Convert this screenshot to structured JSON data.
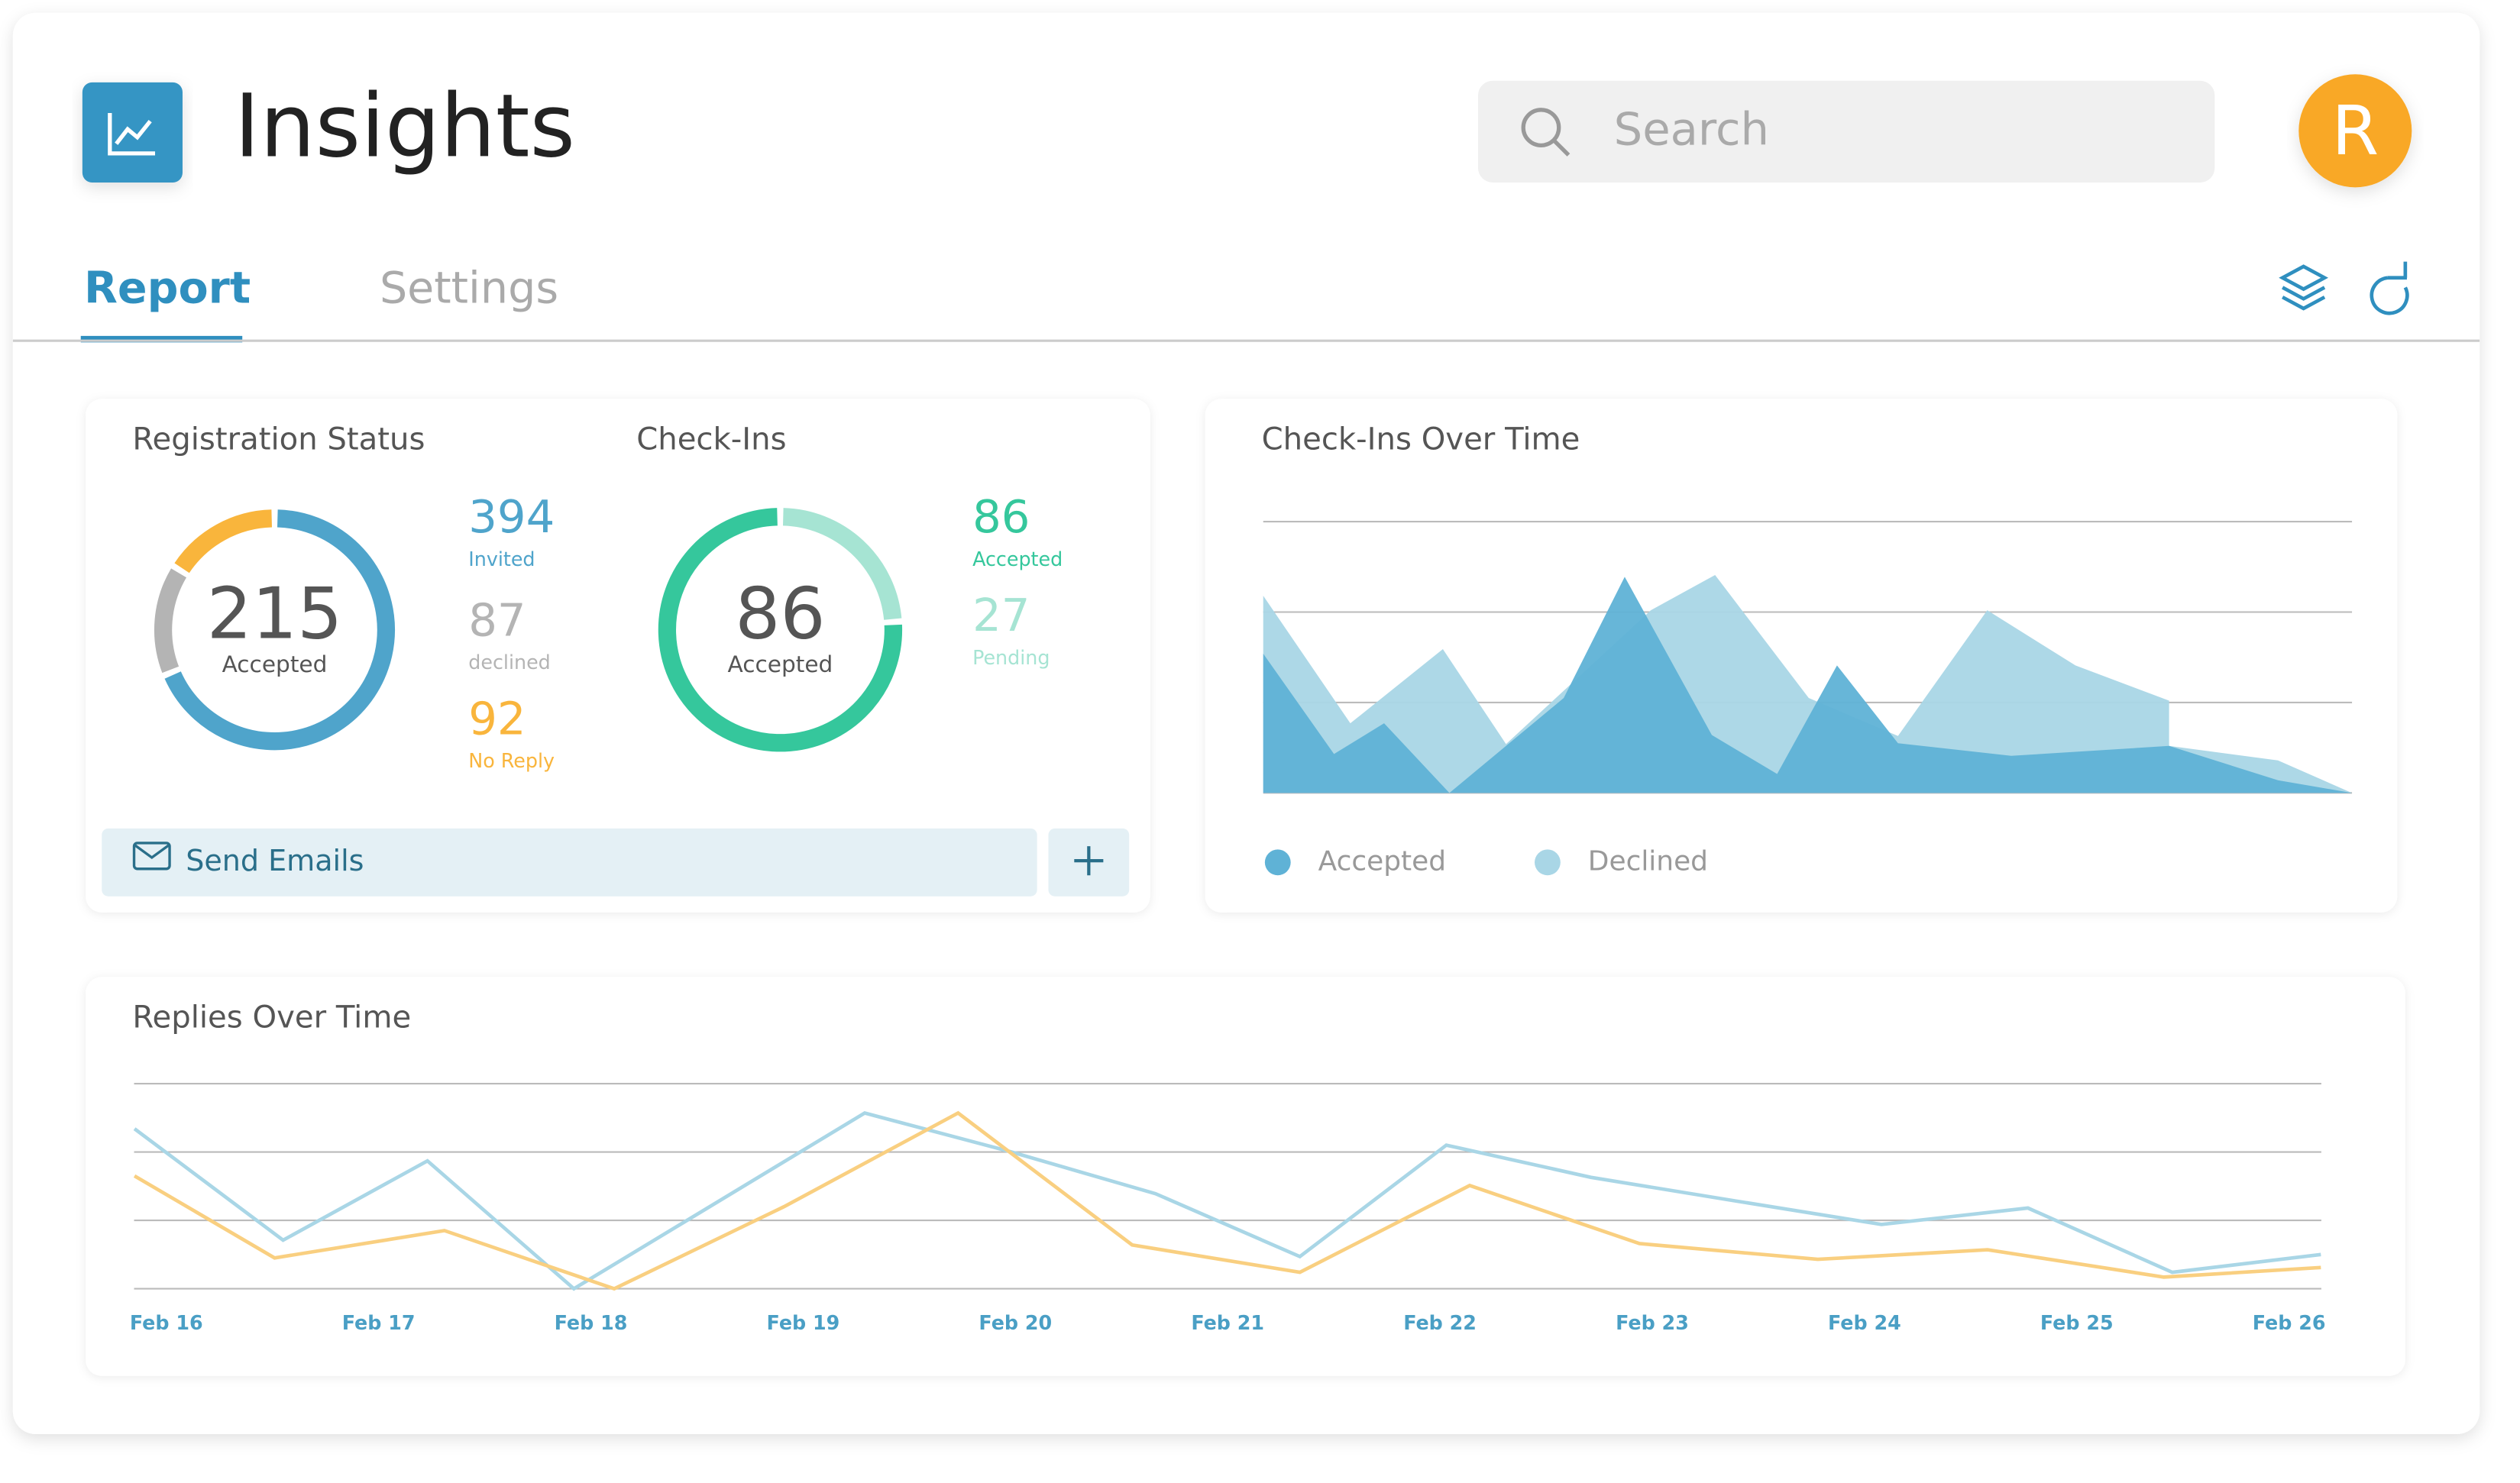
{
  "header": {
    "title": "Insights",
    "search_placeholder": "Search",
    "avatar": "R"
  },
  "tabs": [
    "Report",
    "Settings"
  ],
  "registration_status": {
    "title": "Registration Status",
    "center_value": 215,
    "center_label": "Accepted",
    "clockwise": true,
    "items": [
      {
        "value": 394,
        "label": "Invited",
        "color": "#4fa4cb"
      },
      {
        "value": 87,
        "label": "declined",
        "color": "#b4b4b4"
      },
      {
        "value": 92,
        "label": "No Reply",
        "color": "#f9b53c"
      }
    ]
  },
  "check_ins": {
    "title": "Check-Ins",
    "center_value": 86,
    "center_label": "Accepted",
    "clockwise": false,
    "items": [
      {
        "value": 86,
        "label": "Accepted",
        "color": "#35c79c"
      },
      {
        "value": 27,
        "label": "Pending",
        "color": "#a6e4d3"
      }
    ]
  },
  "send_emails": "Send Emails",
  "chart_data": [
    {
      "type": "area",
      "title": "Check-Ins Over Time",
      "xlim": [
        0,
        100
      ],
      "ylim": [
        0,
        3
      ],
      "yticks": [
        0,
        1,
        2,
        3
      ],
      "grid": true,
      "series": [
        {
          "name": "Accepted",
          "color": "#5fb2d6",
          "x": [
            0,
            6.5,
            11.1,
            17.1,
            27.6,
            33.2,
            41.2,
            47.2,
            52.7,
            58.3,
            68.7,
            83.2,
            93.2,
            100
          ],
          "values": [
            1.54,
            0.43,
            0.77,
            0,
            1.05,
            2.39,
            0.64,
            0.21,
            1.41,
            0.55,
            0.41,
            0.52,
            0.14,
            0
          ]
        },
        {
          "name": "Declined",
          "color": "#a9d6e6",
          "x": [
            0,
            8.0,
            16.5,
            22.3,
            35.6,
            41.5,
            50.1,
            58.3,
            66.5,
            74.6,
            83.2,
            83.2,
            93.2,
            100
          ],
          "values": [
            2.18,
            0.77,
            1.59,
            0.54,
            2.02,
            2.41,
            1.05,
            0.63,
            2.02,
            1.41,
            1.02,
            0.52,
            0.36,
            0
          ]
        }
      ]
    },
    {
      "type": "line",
      "title": "Replies Over Time",
      "xlim": [
        -0.152,
        10.152
      ],
      "ylim": [
        0,
        3
      ],
      "yticks": [
        0,
        1,
        2,
        3
      ],
      "grid": true,
      "xticks": [
        {
          "value": 0,
          "label": "Feb 16"
        },
        {
          "value": 1,
          "label": "Feb 17"
        },
        {
          "value": 2,
          "label": "Feb 18"
        },
        {
          "value": 3,
          "label": "Feb 19"
        },
        {
          "value": 4,
          "label": "Feb 20"
        },
        {
          "value": 5,
          "label": "Feb 21"
        },
        {
          "value": 6,
          "label": "Feb 22"
        },
        {
          "value": 7,
          "label": "Feb 23"
        },
        {
          "value": 8,
          "label": "Feb 24"
        },
        {
          "value": 9,
          "label": "Feb 25"
        },
        {
          "value": 10,
          "label": "Feb 26"
        }
      ],
      "series": [
        {
          "color": "#a9d6e6",
          "x": [
            -0.15,
            0.55,
            1.23,
            1.92,
            3.29,
            3.97,
            4.66,
            5.34,
            6.03,
            6.71,
            7.4,
            8.08,
            8.77,
            9.45,
            10.15
          ],
          "values": [
            2.34,
            0.71,
            1.87,
            0,
            2.57,
            2.01,
            1.39,
            0.47,
            2.1,
            1.63,
            1.28,
            0.94,
            1.18,
            0.24,
            0.5
          ]
        },
        {
          "color": "#f9cf80",
          "x": [
            -0.15,
            0.51,
            1.31,
            2.11,
            2.91,
            3.73,
            4.55,
            5.34,
            6.14,
            6.94,
            7.78,
            8.58,
            9.41,
            10.15
          ],
          "values": [
            1.65,
            0.45,
            0.85,
            0,
            1.2,
            2.57,
            0.64,
            0.24,
            1.51,
            0.66,
            0.43,
            0.57,
            0.17,
            0.31
          ]
        }
      ]
    }
  ]
}
